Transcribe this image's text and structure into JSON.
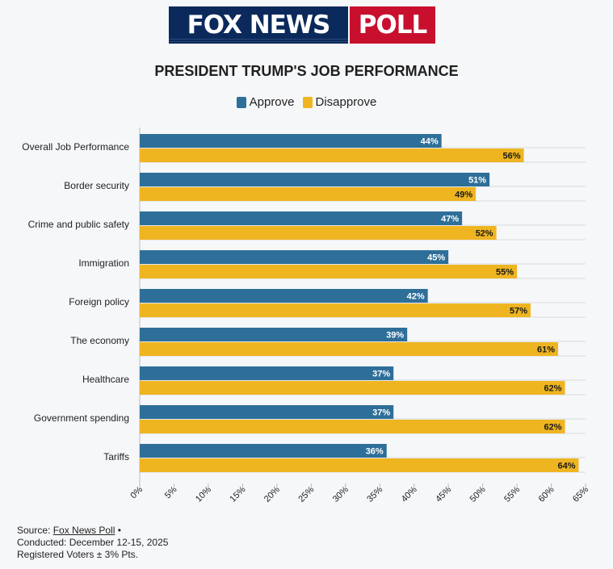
{
  "logo": {
    "brand": "FOX NEWS",
    "suffix": "POLL"
  },
  "chart_data": {
    "type": "bar",
    "orientation": "horizontal",
    "title": "PRESIDENT TRUMP'S JOB PERFORMANCE",
    "categories": [
      "Overall Job Performance",
      "Border security",
      "Crime and public safety",
      "Immigration",
      "Foreign policy",
      "The economy",
      "Healthcare",
      "Government spending",
      "Tariffs"
    ],
    "series": [
      {
        "name": "Approve",
        "color": "#2e6f99",
        "values": [
          44,
          51,
          47,
          45,
          42,
          39,
          37,
          37,
          36
        ]
      },
      {
        "name": "Disapprove",
        "color": "#efb521",
        "values": [
          56,
          49,
          52,
          55,
          57,
          61,
          62,
          62,
          64
        ]
      }
    ],
    "xlim": [
      0,
      65
    ],
    "xticks": [
      "0%",
      "5%",
      "10%",
      "15%",
      "20%",
      "25%",
      "30%",
      "35%",
      "40%",
      "45%",
      "50%",
      "55%",
      "60%",
      "65%"
    ],
    "grid": true,
    "legend": "top-center"
  },
  "footer": {
    "source_prefix": "Source:",
    "source_link": "Fox News Poll",
    "source_suffix": "•",
    "conducted": "Conducted: December 12-15, 2025",
    "sample": "Registered Voters ± 3% Pts."
  }
}
